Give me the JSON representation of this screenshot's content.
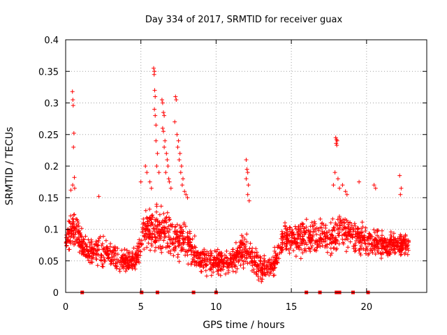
{
  "chart_data": {
    "type": "scatter",
    "title": "Day 334 of 2017, SRMTID for receiver guax",
    "xlabel": "GPS time / hours",
    "ylabel": "SRMTID / TECUs",
    "xlim": [
      0,
      24
    ],
    "ylim": [
      0,
      0.4
    ],
    "x_ticks": [
      0,
      5,
      10,
      15,
      20
    ],
    "x_tick_labels": [
      "0",
      "5",
      "10",
      "15",
      "20"
    ],
    "y_ticks": [
      0,
      0.05,
      0.1,
      0.15,
      0.2,
      0.25,
      0.3,
      0.35,
      0.4
    ],
    "y_tick_labels": [
      "0",
      "0.05",
      "0.1",
      "0.15",
      "0.2",
      "0.25",
      "0.3",
      "0.35",
      "0.4"
    ],
    "grid": true,
    "marker": "+",
    "series_color": "#ff0000",
    "outliers": [
      {
        "x": 0.45,
        "y": 0.318
      },
      {
        "x": 0.48,
        "y": 0.305
      },
      {
        "x": 0.5,
        "y": 0.296
      },
      {
        "x": 0.55,
        "y": 0.252
      },
      {
        "x": 0.52,
        "y": 0.23
      },
      {
        "x": 0.58,
        "y": 0.182
      },
      {
        "x": 0.47,
        "y": 0.17
      },
      {
        "x": 0.6,
        "y": 0.165
      },
      {
        "x": 0.35,
        "y": 0.162
      },
      {
        "x": 2.2,
        "y": 0.152
      },
      {
        "x": 5.0,
        "y": 0.175
      },
      {
        "x": 5.3,
        "y": 0.2
      },
      {
        "x": 5.4,
        "y": 0.19
      },
      {
        "x": 5.6,
        "y": 0.175
      },
      {
        "x": 5.7,
        "y": 0.165
      },
      {
        "x": 5.85,
        "y": 0.355
      },
      {
        "x": 5.9,
        "y": 0.35
      },
      {
        "x": 5.88,
        "y": 0.345
      },
      {
        "x": 5.92,
        "y": 0.32
      },
      {
        "x": 5.95,
        "y": 0.31
      },
      {
        "x": 5.9,
        "y": 0.29
      },
      {
        "x": 5.95,
        "y": 0.28
      },
      {
        "x": 6.0,
        "y": 0.265
      },
      {
        "x": 6.0,
        "y": 0.24
      },
      {
        "x": 6.1,
        "y": 0.22
      },
      {
        "x": 6.05,
        "y": 0.2
      },
      {
        "x": 6.2,
        "y": 0.19
      },
      {
        "x": 6.4,
        "y": 0.305
      },
      {
        "x": 6.45,
        "y": 0.3
      },
      {
        "x": 6.5,
        "y": 0.285
      },
      {
        "x": 6.55,
        "y": 0.28
      },
      {
        "x": 6.45,
        "y": 0.26
      },
      {
        "x": 6.5,
        "y": 0.255
      },
      {
        "x": 6.6,
        "y": 0.24
      },
      {
        "x": 6.55,
        "y": 0.23
      },
      {
        "x": 6.7,
        "y": 0.22
      },
      {
        "x": 6.75,
        "y": 0.21
      },
      {
        "x": 6.8,
        "y": 0.2
      },
      {
        "x": 6.65,
        "y": 0.19
      },
      {
        "x": 6.85,
        "y": 0.18
      },
      {
        "x": 6.9,
        "y": 0.175
      },
      {
        "x": 7.0,
        "y": 0.165
      },
      {
        "x": 7.3,
        "y": 0.31
      },
      {
        "x": 7.35,
        "y": 0.305
      },
      {
        "x": 7.25,
        "y": 0.27
      },
      {
        "x": 7.4,
        "y": 0.25
      },
      {
        "x": 7.5,
        "y": 0.24
      },
      {
        "x": 7.45,
        "y": 0.23
      },
      {
        "x": 7.6,
        "y": 0.22
      },
      {
        "x": 7.55,
        "y": 0.21
      },
      {
        "x": 7.7,
        "y": 0.2
      },
      {
        "x": 7.65,
        "y": 0.19
      },
      {
        "x": 7.8,
        "y": 0.18
      },
      {
        "x": 7.75,
        "y": 0.17
      },
      {
        "x": 7.9,
        "y": 0.16
      },
      {
        "x": 8.0,
        "y": 0.155
      },
      {
        "x": 8.1,
        "y": 0.15
      },
      {
        "x": 12.0,
        "y": 0.21
      },
      {
        "x": 12.05,
        "y": 0.195
      },
      {
        "x": 12.1,
        "y": 0.19
      },
      {
        "x": 12.0,
        "y": 0.18
      },
      {
        "x": 12.15,
        "y": 0.17
      },
      {
        "x": 12.1,
        "y": 0.155
      },
      {
        "x": 12.2,
        "y": 0.145
      },
      {
        "x": 17.95,
        "y": 0.245
      },
      {
        "x": 18.0,
        "y": 0.242
      },
      {
        "x": 18.05,
        "y": 0.24
      },
      {
        "x": 17.98,
        "y": 0.236
      },
      {
        "x": 18.02,
        "y": 0.233
      },
      {
        "x": 17.9,
        "y": 0.19
      },
      {
        "x": 18.1,
        "y": 0.18
      },
      {
        "x": 17.8,
        "y": 0.17
      },
      {
        "x": 18.2,
        "y": 0.165
      },
      {
        "x": 18.4,
        "y": 0.17
      },
      {
        "x": 18.6,
        "y": 0.16
      },
      {
        "x": 18.7,
        "y": 0.155
      },
      {
        "x": 19.5,
        "y": 0.175
      },
      {
        "x": 20.5,
        "y": 0.17
      },
      {
        "x": 20.6,
        "y": 0.165
      },
      {
        "x": 22.2,
        "y": 0.185
      },
      {
        "x": 22.3,
        "y": 0.165
      },
      {
        "x": 22.25,
        "y": 0.155
      }
    ],
    "zero_markers_x": [
      1.1,
      5.05,
      6.1,
      8.5,
      10.0,
      16.0,
      16.9,
      18.0,
      18.2,
      19.1,
      20.1
    ],
    "envelope": [
      {
        "t": 0.0,
        "lo": 0.05,
        "hi": 0.1
      },
      {
        "t": 0.3,
        "lo": 0.06,
        "hi": 0.14
      },
      {
        "t": 0.8,
        "lo": 0.06,
        "hi": 0.13
      },
      {
        "t": 1.2,
        "lo": 0.04,
        "hi": 0.09
      },
      {
        "t": 2.0,
        "lo": 0.035,
        "hi": 0.1
      },
      {
        "t": 3.0,
        "lo": 0.03,
        "hi": 0.09
      },
      {
        "t": 4.0,
        "lo": 0.025,
        "hi": 0.07
      },
      {
        "t": 4.8,
        "lo": 0.03,
        "hi": 0.08
      },
      {
        "t": 5.2,
        "lo": 0.06,
        "hi": 0.14
      },
      {
        "t": 6.0,
        "lo": 0.05,
        "hi": 0.15
      },
      {
        "t": 7.0,
        "lo": 0.04,
        "hi": 0.14
      },
      {
        "t": 8.0,
        "lo": 0.04,
        "hi": 0.12
      },
      {
        "t": 9.0,
        "lo": 0.025,
        "hi": 0.08
      },
      {
        "t": 10.0,
        "lo": 0.02,
        "hi": 0.075
      },
      {
        "t": 11.0,
        "lo": 0.02,
        "hi": 0.075
      },
      {
        "t": 12.0,
        "lo": 0.03,
        "hi": 0.11
      },
      {
        "t": 13.0,
        "lo": 0.01,
        "hi": 0.06
      },
      {
        "t": 13.8,
        "lo": 0.02,
        "hi": 0.07
      },
      {
        "t": 14.5,
        "lo": 0.05,
        "hi": 0.12
      },
      {
        "t": 15.5,
        "lo": 0.05,
        "hi": 0.12
      },
      {
        "t": 16.5,
        "lo": 0.05,
        "hi": 0.12
      },
      {
        "t": 17.5,
        "lo": 0.05,
        "hi": 0.12
      },
      {
        "t": 18.5,
        "lo": 0.06,
        "hi": 0.14
      },
      {
        "t": 19.5,
        "lo": 0.05,
        "hi": 0.12
      },
      {
        "t": 20.5,
        "lo": 0.05,
        "hi": 0.11
      },
      {
        "t": 21.5,
        "lo": 0.05,
        "hi": 0.1
      },
      {
        "t": 22.8,
        "lo": 0.05,
        "hi": 0.1
      }
    ]
  }
}
